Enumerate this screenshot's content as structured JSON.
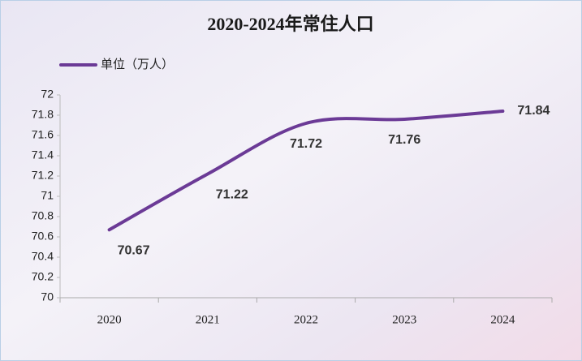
{
  "chart_data": {
    "type": "line",
    "title": "2020-2024年常住人口",
    "categories": [
      "2020",
      "2021",
      "2022",
      "2023",
      "2024"
    ],
    "series": [
      {
        "name": "单位（万人）",
        "color": "#6b3a96",
        "values": [
          70.67,
          71.22,
          71.72,
          71.76,
          71.84
        ]
      }
    ],
    "ylim": [
      70,
      72
    ],
    "yticks": [
      70,
      70.2,
      70.4,
      70.6,
      70.8,
      71,
      71.2,
      71.4,
      71.6,
      71.8,
      72
    ],
    "smooth": true,
    "legend": "top-left"
  }
}
